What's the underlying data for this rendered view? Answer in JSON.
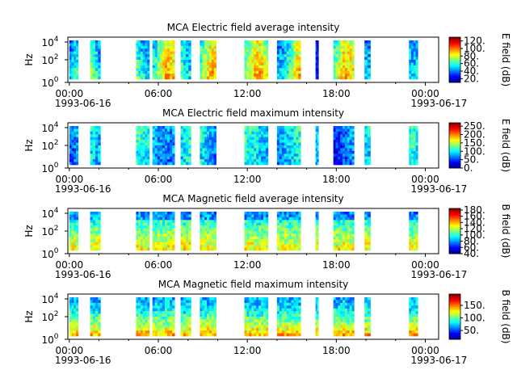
{
  "chart_data": [
    {
      "type": "heatmap",
      "title": "MCA  Electric field average intensity",
      "ylabel": "Hz",
      "y_scale": "log",
      "y_tick_labels": [
        "10^0",
        "10^2",
        "10^4"
      ],
      "x_tick_labels": [
        "00:00",
        "06:00",
        "12:00",
        "18:00",
        "00:00"
      ],
      "x_start_date": "1993-06-16",
      "x_end_date": "1993-06-17",
      "colorbar_label": "E field (dB)",
      "colorbar_ticks": [
        "20.",
        "40.",
        "60.",
        "80.",
        "100.",
        "120."
      ],
      "colorbar_range": [
        10,
        130
      ]
    },
    {
      "type": "heatmap",
      "title": "MCA  Electric field maximum intensity",
      "ylabel": "Hz",
      "y_scale": "log",
      "y_tick_labels": [
        "10^0",
        "10^2",
        "10^4"
      ],
      "x_tick_labels": [
        "00:00",
        "06:00",
        "12:00",
        "18:00",
        "00:00"
      ],
      "x_start_date": "1993-06-16",
      "x_end_date": "1993-06-17",
      "colorbar_label": "E field (dB)",
      "colorbar_ticks": [
        "0.",
        "50.",
        "100.",
        "150.",
        "200.",
        "250."
      ],
      "colorbar_range": [
        0,
        270
      ]
    },
    {
      "type": "heatmap",
      "title": "MCA  Magnetic field average intensity",
      "ylabel": "Hz",
      "y_scale": "log",
      "y_tick_labels": [
        "10^0",
        "10^2",
        "10^4"
      ],
      "x_tick_labels": [
        "00:00",
        "06:00",
        "12:00",
        "18:00",
        "00:00"
      ],
      "x_start_date": "1993-06-16",
      "x_end_date": "1993-06-17",
      "colorbar_label": "B field (dB)",
      "colorbar_ticks": [
        "40.",
        "60.",
        "80.",
        "100.",
        "120.",
        "140.",
        "160.",
        "180."
      ],
      "colorbar_range": [
        40,
        185
      ]
    },
    {
      "type": "heatmap",
      "title": "MCA  Magnetic field maximum intensity",
      "ylabel": "Hz",
      "y_scale": "log",
      "y_tick_labels": [
        "10^0",
        "10^2",
        "10^4"
      ],
      "x_tick_labels": [
        "00:00",
        "06:00",
        "12:00",
        "18:00",
        "00:00"
      ],
      "x_start_date": "1993-06-16",
      "x_end_date": "1993-06-17",
      "colorbar_label": "B field (dB)",
      "colorbar_ticks": [
        "50.",
        "100.",
        "150."
      ],
      "colorbar_range": [
        15,
        195
      ]
    }
  ]
}
